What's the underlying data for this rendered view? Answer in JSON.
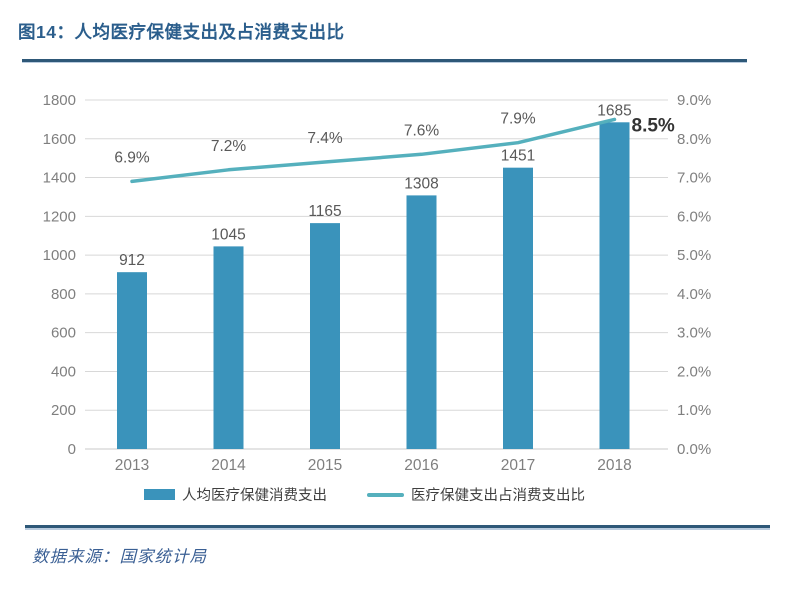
{
  "header": {
    "title": "图14：人均医疗保健支出及占消费支出比"
  },
  "chart_data": {
    "type": "bar",
    "subtype": "bar-line-combo",
    "categories": [
      "2013",
      "2014",
      "2015",
      "2016",
      "2017",
      "2018"
    ],
    "series": [
      {
        "name": "人均医疗保健消费支出",
        "type": "bar",
        "axis": "left",
        "values": [
          912,
          1045,
          1165,
          1308,
          1451,
          1685
        ],
        "labels": [
          "912",
          "1045",
          "1165",
          "1308",
          "1451",
          "1685"
        ],
        "color": "#3A93BB"
      },
      {
        "name": "医疗保健支出占消费支出比",
        "type": "line",
        "axis": "right",
        "values": [
          6.9,
          7.2,
          7.4,
          7.6,
          7.9,
          8.5
        ],
        "labels": [
          "6.9%",
          "7.2%",
          "7.4%",
          "7.6%",
          "7.9%",
          "8.5%"
        ],
        "color": "#55B0BD"
      }
    ],
    "left_axis": {
      "min": 0,
      "max": 1800,
      "step": 200,
      "ticks": [
        "0",
        "200",
        "400",
        "600",
        "800",
        "1000",
        "1200",
        "1400",
        "1600",
        "1800"
      ]
    },
    "right_axis": {
      "min": 0,
      "max": 9,
      "step": 1,
      "ticks": [
        "0.0%",
        "1.0%",
        "2.0%",
        "3.0%",
        "4.0%",
        "5.0%",
        "6.0%",
        "7.0%",
        "8.0%",
        "9.0%"
      ]
    },
    "grid": true,
    "legend_position": "bottom"
  },
  "colors": {
    "title": "#2B5E8C",
    "rule": "#2E5878",
    "rule_shadow": "#B9CBDE",
    "bar": "#3A93BB",
    "line": "#55B0BD",
    "grid": "#D8D8D8",
    "baseline": "#C9C9C9",
    "axis_text": "#7F7F7F",
    "data_label": "#595959",
    "final_label": "#333333"
  },
  "footer": {
    "source": "数据来源：国家统计局"
  }
}
